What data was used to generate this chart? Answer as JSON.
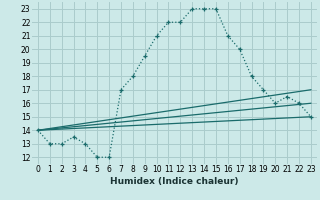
{
  "xlabel": "Humidex (Indice chaleur)",
  "background_color": "#cce9e8",
  "grid_color": "#aacccc",
  "line_color": "#1a6b6b",
  "xlim": [
    -0.5,
    23.5
  ],
  "ylim": [
    11.5,
    23.5
  ],
  "xticks": [
    0,
    1,
    2,
    3,
    4,
    5,
    6,
    7,
    8,
    9,
    10,
    11,
    12,
    13,
    14,
    15,
    16,
    17,
    18,
    19,
    20,
    21,
    22,
    23
  ],
  "yticks": [
    12,
    13,
    14,
    15,
    16,
    17,
    18,
    19,
    20,
    21,
    22,
    23
  ],
  "series1_x": [
    0,
    1,
    2,
    3,
    4,
    5,
    6,
    7,
    8,
    9,
    10,
    11,
    12,
    13,
    14,
    15,
    16,
    17,
    18,
    19,
    20,
    21,
    22,
    23
  ],
  "series1_y": [
    14,
    13,
    13,
    13.5,
    13,
    12,
    12,
    17,
    18,
    19.5,
    21,
    22,
    22,
    23,
    23,
    23,
    21,
    20,
    18,
    17,
    16,
    16.5,
    16,
    15
  ],
  "series2_y_start": 14,
  "series2_y_end": 15,
  "series3_y_start": 14,
  "series3_y_end": 16,
  "series4_y_start": 14,
  "series4_y_end": 17,
  "tick_fontsize": 5.5,
  "xlabel_fontsize": 6.5
}
